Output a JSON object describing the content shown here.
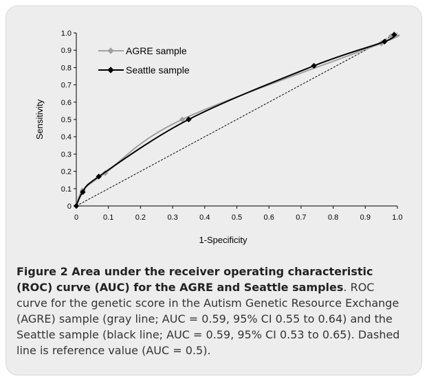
{
  "chart_data": {
    "type": "line",
    "xlabel": "1-Specificity",
    "ylabel": "Sensitivity",
    "xlim": [
      0,
      1.0
    ],
    "ylim": [
      0,
      1.0
    ],
    "x_ticks": [
      "0",
      "0.1",
      "0.2",
      "0.3",
      "0.4",
      "0.5",
      "0.6",
      "0.7",
      "0.8",
      "0.9",
      "1.0"
    ],
    "y_ticks": [
      "0",
      "0.1",
      "0.2",
      "0.3",
      "0.4",
      "0.5",
      "0.6",
      "0.7",
      "0.8",
      "0.9",
      "1.0"
    ],
    "grid": false,
    "legend_position": "top-left",
    "series": [
      {
        "name": "AGRE sample",
        "color": "#a0a0a0",
        "marker": "diamond",
        "x": [
          0,
          0.02,
          0.09,
          0.33,
          0.95,
          0.98,
          0.99
        ],
        "y": [
          0,
          0.09,
          0.19,
          0.5,
          0.94,
          0.98,
          0.99
        ]
      },
      {
        "name": "Seattle sample",
        "color": "#000000",
        "marker": "diamond",
        "x": [
          0,
          0.02,
          0.07,
          0.35,
          0.74,
          0.96,
          0.99
        ],
        "y": [
          0,
          0.08,
          0.17,
          0.5,
          0.81,
          0.95,
          0.99
        ]
      }
    ],
    "reference_line": {
      "style": "dashed",
      "x": [
        0,
        1
      ],
      "y": [
        0,
        1
      ]
    }
  },
  "caption": {
    "title": "Figure 2 Area under the receiver operating characteristic (ROC) curve (AUC) for the AGRE and Seattle samples",
    "text": ". ROC curve for the genetic score in the Autism Genetic Resource Exchange (AGRE) sample (gray line; AUC = 0.59, 95% CI 0.55 to 0.64) and the Seattle sample (black line; AUC = 0.59, 95% CI 0.53 to 0.65). Dashed line is reference value (AUC = 0.5)."
  }
}
